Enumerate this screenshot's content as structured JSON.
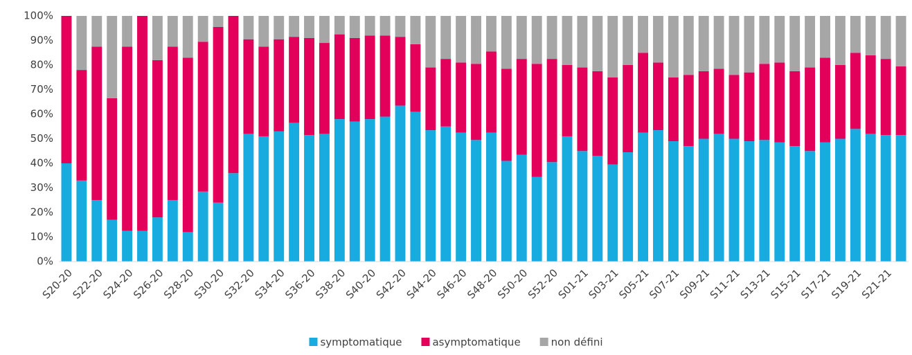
{
  "chart_data": {
    "type": "stacked_bar",
    "categories": [
      "S20-20",
      null,
      "S22-20",
      null,
      "S24-20",
      null,
      "S26-20",
      null,
      "S28-20",
      null,
      "S30-20",
      null,
      "S32-20",
      null,
      "S34-20",
      null,
      "S36-20",
      null,
      "S38-20",
      null,
      "S40-20",
      null,
      "S42-20",
      null,
      "S44-20",
      null,
      "S46-20",
      null,
      "S48-20",
      null,
      "S50-20",
      null,
      "S52-20",
      null,
      "S01-21",
      null,
      "S03-21",
      null,
      "S05-21",
      null,
      "S07-21",
      null,
      "S09-21",
      null,
      "S11-21",
      null,
      "S13-21",
      null,
      "S15-21",
      null,
      "S17-21",
      null,
      "S19-21",
      null,
      "S21-21",
      null
    ],
    "series": [
      {
        "name": "symptomatique",
        "color": "#17abdf",
        "values": [
          40,
          33,
          25,
          17,
          12.5,
          12.5,
          18,
          25,
          12,
          28.5,
          24,
          36,
          52,
          51,
          53,
          56.5,
          51.5,
          52,
          58,
          57,
          58,
          59,
          63.5,
          61,
          53.5,
          55,
          52.5,
          49.5,
          52.5,
          41,
          43.5,
          34.5,
          40.5,
          51,
          45,
          43,
          39.5,
          44.5,
          52.5,
          53.5,
          49,
          47,
          50,
          52,
          50,
          49,
          49.5,
          48.5,
          47,
          45,
          48.5,
          50,
          54,
          52,
          51.5,
          51.5
        ]
      },
      {
        "name": "asymptomatique",
        "color": "#e3005a",
        "values": [
          60,
          45,
          62.5,
          49.5,
          75,
          87.5,
          64,
          62.5,
          71,
          61,
          71.5,
          64,
          38.5,
          36.5,
          37.5,
          35,
          39.5,
          37,
          34.5,
          34,
          34,
          33,
          28,
          27.5,
          25.5,
          27.5,
          28.5,
          31,
          33,
          37.5,
          39,
          46,
          42,
          29,
          34,
          34.5,
          35.5,
          35.5,
          32.5,
          27.5,
          26,
          29,
          27.5,
          26.5,
          26,
          28,
          31,
          32.5,
          30.5,
          34,
          34.5,
          30,
          31,
          32,
          31,
          28
        ]
      },
      {
        "name": "non défini",
        "color": "#a6a6a6",
        "values": [
          0,
          22,
          12.5,
          33.5,
          12.5,
          0,
          18,
          12.5,
          17,
          10.5,
          4.5,
          0,
          9.5,
          12.5,
          9.5,
          8.5,
          9,
          11,
          7.5,
          9,
          8,
          8,
          8.5,
          11.5,
          21,
          17.5,
          19,
          19.5,
          14.5,
          21.5,
          17.5,
          19.5,
          17.5,
          20,
          21,
          22.5,
          25,
          20,
          15,
          19,
          25,
          24,
          22.5,
          21.5,
          24,
          23,
          19.5,
          19,
          22.5,
          21,
          17,
          20,
          15,
          16,
          17.5,
          20.5
        ]
      }
    ],
    "ylim": [
      0,
      100
    ],
    "yticks": [
      {
        "value": 0,
        "label": "0%"
      },
      {
        "value": 10,
        "label": "10%"
      },
      {
        "value": 20,
        "label": "20%"
      },
      {
        "value": 30,
        "label": "30%"
      },
      {
        "value": 40,
        "label": "40%"
      },
      {
        "value": 50,
        "label": "50%"
      },
      {
        "value": 60,
        "label": "60%"
      },
      {
        "value": 70,
        "label": "70%"
      },
      {
        "value": 80,
        "label": "80%"
      },
      {
        "value": 90,
        "label": "90%"
      },
      {
        "value": 100,
        "label": "100%"
      }
    ],
    "grid": false,
    "legend": "bottom"
  }
}
